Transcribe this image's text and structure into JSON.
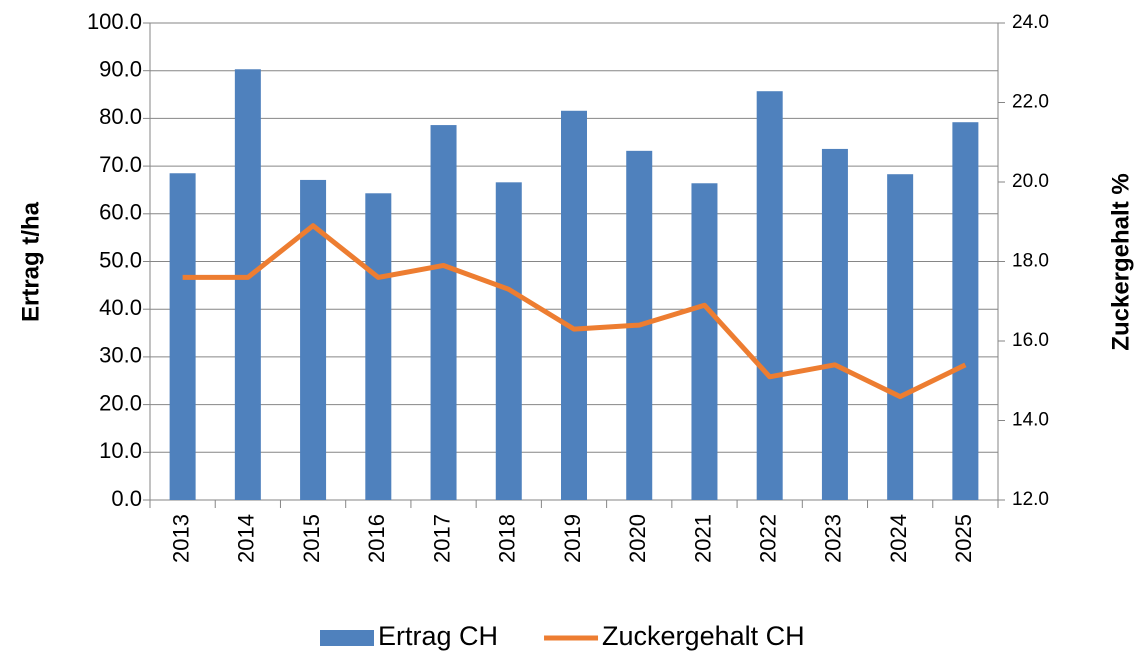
{
  "chart_data": {
    "type": "bar",
    "categories": [
      "2013",
      "2014",
      "2015",
      "2016",
      "2017",
      "2018",
      "2019",
      "2020",
      "2021",
      "2022",
      "2023",
      "2024",
      "2025"
    ],
    "ylabel": "Ertrag t/ha",
    "y2label": "Zuckergehalt %",
    "series": [
      {
        "name": "Ertrag CH",
        "type": "bar",
        "color": "#4f81bd",
        "values": [
          68.5,
          90.3,
          67.1,
          64.3,
          78.6,
          66.6,
          81.6,
          73.2,
          66.4,
          85.7,
          73.6,
          68.3,
          79.2
        ]
      },
      {
        "name": "Zuckergehalt CH",
        "type": "line",
        "axis": "y2",
        "color": "#ed7d31",
        "values": [
          17.6,
          17.6,
          18.9,
          17.6,
          17.9,
          17.3,
          16.3,
          16.4,
          16.9,
          15.1,
          15.4,
          14.6,
          15.4
        ]
      }
    ],
    "ylim": [
      0,
      100
    ],
    "yticks": [
      {
        "value": 0,
        "label": "0.0"
      },
      {
        "value": 10,
        "label": "10.0"
      },
      {
        "value": 20,
        "label": "20.0"
      },
      {
        "value": 30,
        "label": "30.0"
      },
      {
        "value": 40,
        "label": "40.0"
      },
      {
        "value": 50,
        "label": "50.0"
      },
      {
        "value": 60,
        "label": "60.0"
      },
      {
        "value": 70,
        "label": "70.0"
      },
      {
        "value": 80,
        "label": "80.0"
      },
      {
        "value": 90,
        "label": "90.0"
      },
      {
        "value": 100,
        "label": "100.0"
      }
    ],
    "y2lim": [
      12,
      24
    ],
    "y2ticks": [
      {
        "value": 12,
        "label": "12.0"
      },
      {
        "value": 14,
        "label": "14.0"
      },
      {
        "value": 16,
        "label": "16.0"
      },
      {
        "value": 18,
        "label": "18.0"
      },
      {
        "value": 20,
        "label": "20.0"
      },
      {
        "value": 22,
        "label": "22.0"
      },
      {
        "value": 24,
        "label": "24.0"
      }
    ],
    "grid": true,
    "legend": "bottom"
  }
}
